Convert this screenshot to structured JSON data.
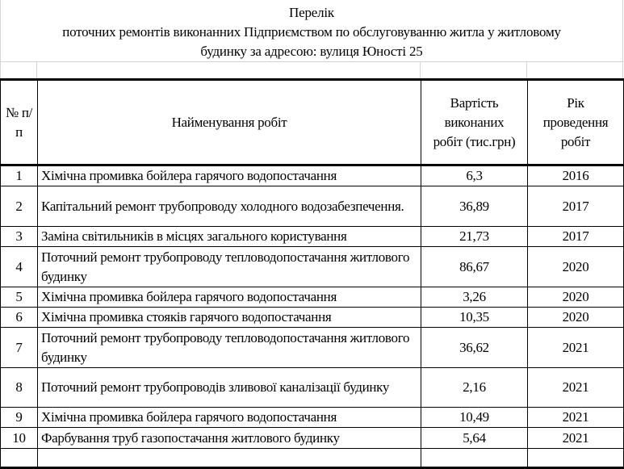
{
  "title": {
    "line1": "Перелік",
    "line2": "поточних ремонтів виконанних Підприємством по обслуговуванню житла у житловому",
    "line3": "будинку за адресою: вулиця Юності 25"
  },
  "headers": {
    "num": "№ п/п",
    "name": "Найменування робіт",
    "cost": "Вартість виконаних робіт (тис.грн)",
    "year": "Рік проведення робіт"
  },
  "rows": [
    {
      "num": "1",
      "name": "Хімічна промивка бойлера гарячого водопостачання",
      "cost": "6,3",
      "year": "2016"
    },
    {
      "num": "2",
      "name": "Капітальний ремонт трубопроводу холодного водозабезпечення.",
      "cost": "36,89",
      "year": "2017"
    },
    {
      "num": "3",
      "name": "Заміна світильників в місцях загального користування",
      "cost": "21,73",
      "year": "2017"
    },
    {
      "num": "4",
      "name": "Поточний ремонт трубопроводу тепловодопостачання житлового будинку",
      "cost": "86,67",
      "year": "2020"
    },
    {
      "num": "5",
      "name": "Хімічна промивка бойлера гарячого водопостачання",
      "cost": "3,26",
      "year": "2020"
    },
    {
      "num": "6",
      "name": "Хімічна промивка стояків гарячого водопостачання",
      "cost": "10,35",
      "year": "2020"
    },
    {
      "num": "7",
      "name": "Поточний ремонт трубопроводу тепловодопостачання житлового будинку",
      "cost": "36,62",
      "year": "2021"
    },
    {
      "num": "8",
      "name": "Поточний ремонт трубопроводів зливової каналізації будинку",
      "cost": "2,16",
      "year": "2021"
    },
    {
      "num": "9",
      "name": "Хімічна промивка бойлера гарячого водопостачання",
      "cost": "10,49",
      "year": "2021"
    },
    {
      "num": "10",
      "name": "Фарбування труб газопостачання житлового будинку",
      "cost": "5,64",
      "year": "2021"
    }
  ]
}
